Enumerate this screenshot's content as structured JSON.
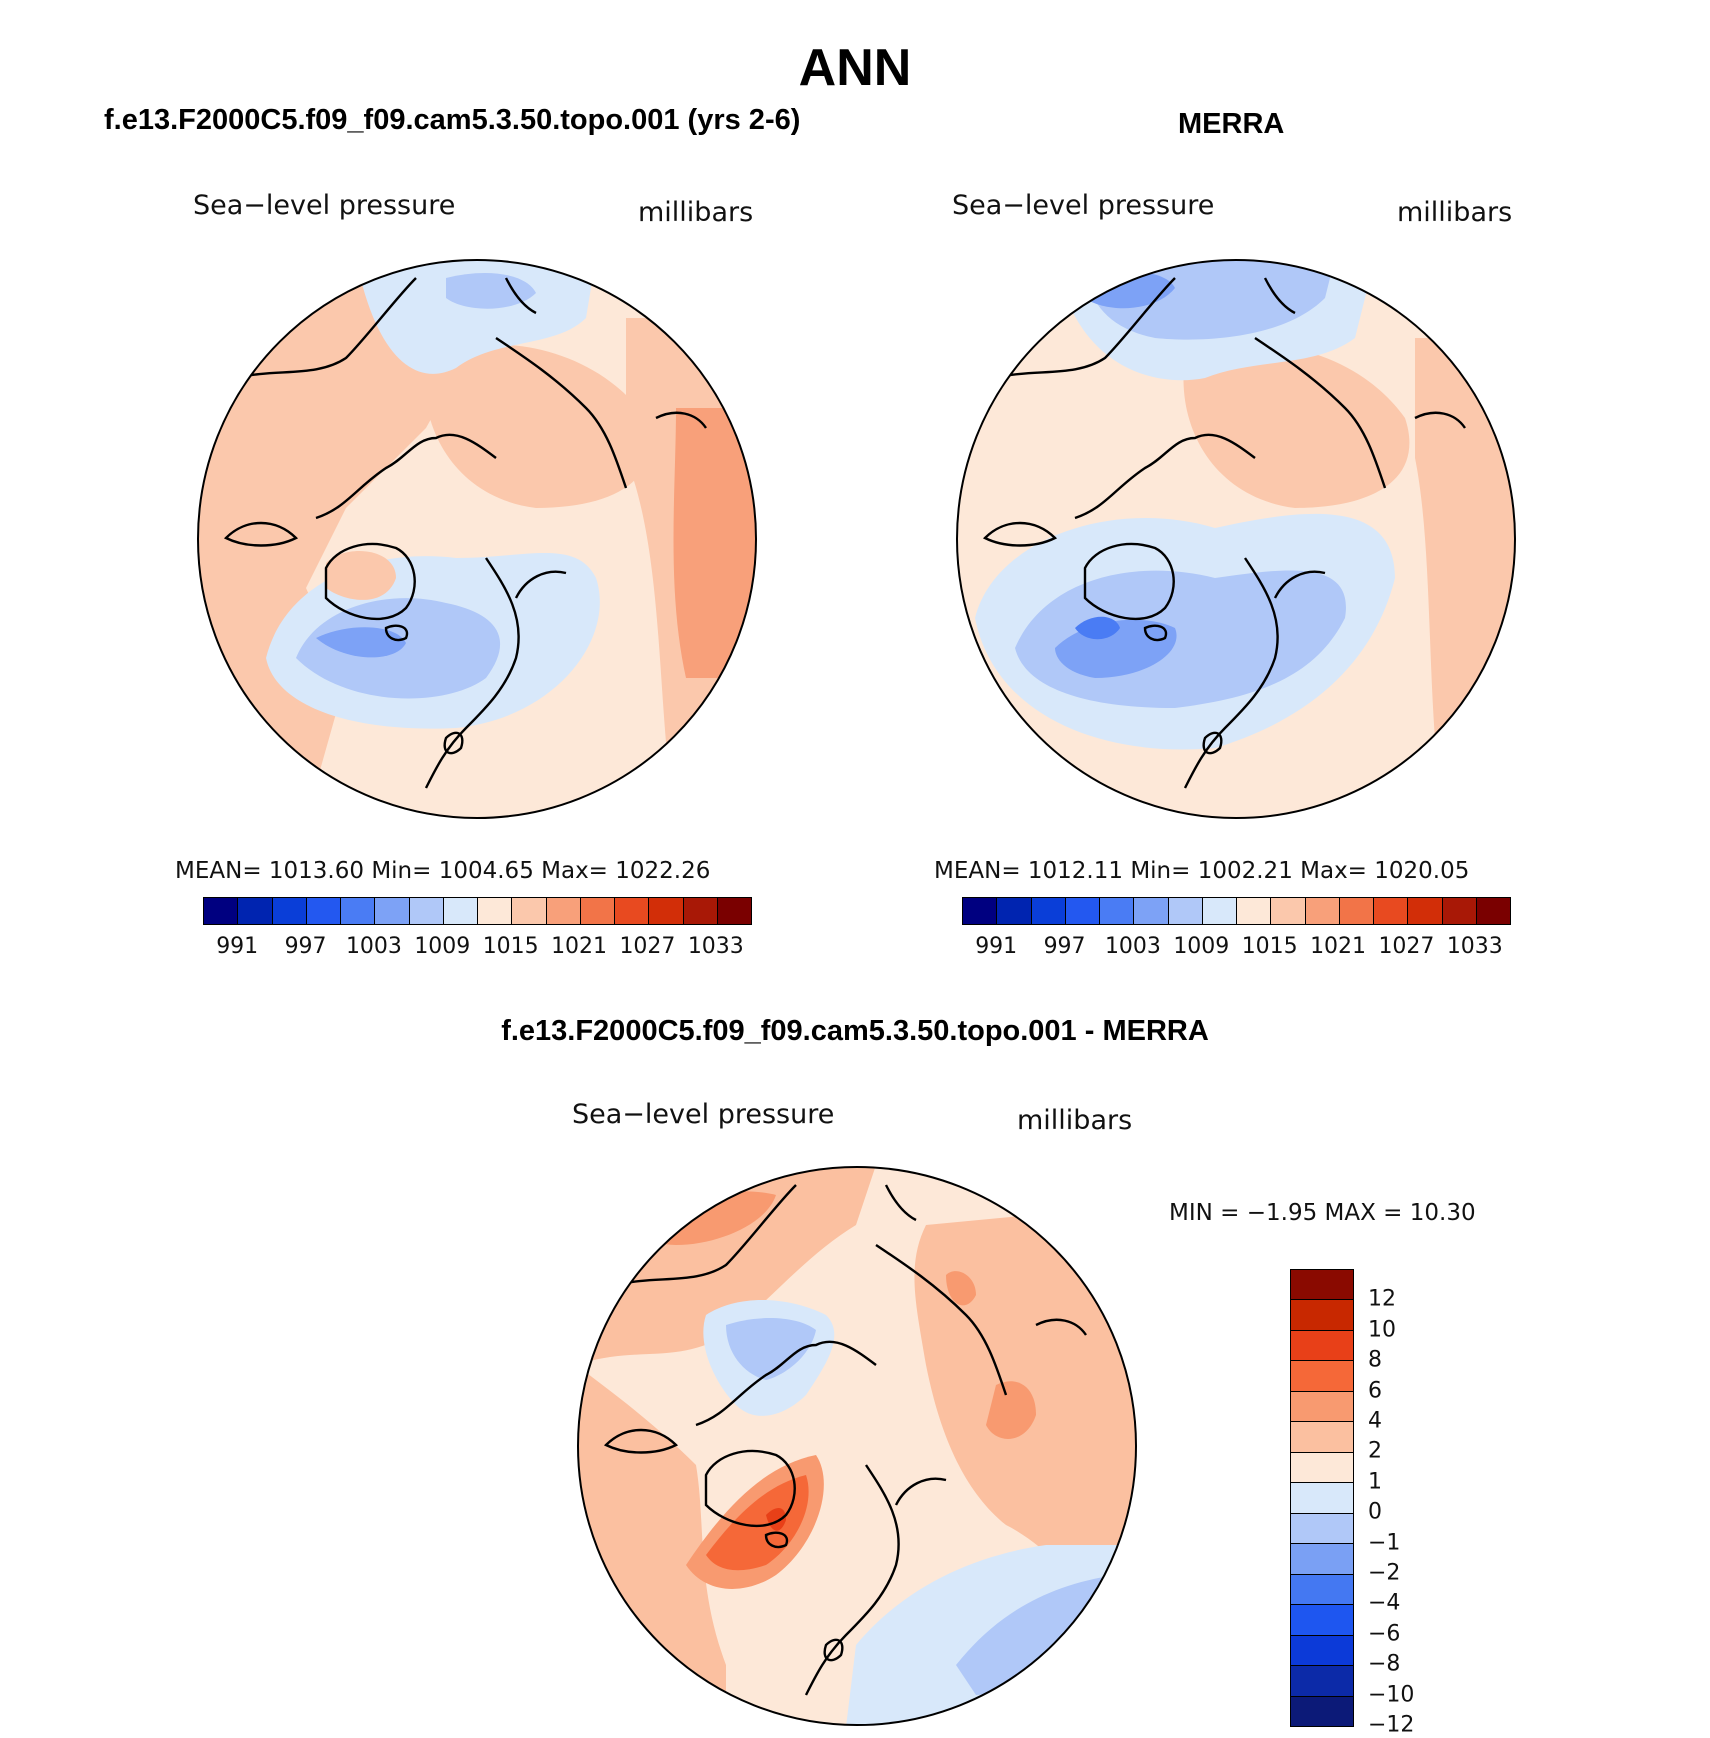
{
  "main_title": "ANN",
  "colors": {
    "abs_scale": [
      "#000080",
      "#0024b0",
      "#0a3ed8",
      "#2358f0",
      "#4a7cf4",
      "#7da2f6",
      "#b0c8f8",
      "#d8e8fa",
      "#fde8d8",
      "#fbc8ac",
      "#f8a07a",
      "#f27448",
      "#e84a20",
      "#d22e08",
      "#a81806",
      "#7a0000"
    ],
    "diff_scale": [
      "#0c1a78",
      "#0c2aa8",
      "#0c3ad8",
      "#1e56f0",
      "#4478f2",
      "#7aa0f4",
      "#b0c8f8",
      "#d8e8fa",
      "#fde8d8",
      "#fbc0a0",
      "#f89a70",
      "#f56838",
      "#e84018",
      "#c82800",
      "#8a0a00"
    ]
  },
  "panels": {
    "model": {
      "title": "f.e13.F2000C5.f09_f09.cam5.3.50.topo.001 (yrs 2-6)",
      "variable": "Sea−level pressure",
      "units": "millibars",
      "stats": "MEAN=  1013.60    Min=  1004.65    Max=  1022.26",
      "mean": 1013.6,
      "min": 1004.65,
      "max": 1022.26,
      "ticks": [
        "991",
        "997",
        "1003",
        "1009",
        "1015",
        "1021",
        "1027",
        "1033"
      ]
    },
    "obs": {
      "title": "MERRA",
      "variable": "Sea−level pressure",
      "units": "millibars",
      "stats": "MEAN=  1012.11    Min=  1002.21    Max=  1020.05",
      "mean": 1012.11,
      "min": 1002.21,
      "max": 1020.05,
      "ticks": [
        "991",
        "997",
        "1003",
        "1009",
        "1015",
        "1021",
        "1027",
        "1033"
      ]
    },
    "diff": {
      "title": "f.e13.F2000C5.f09_f09.cam5.3.50.topo.001 - MERRA",
      "variable": "Sea−level pressure",
      "units": "millibars",
      "stats": "MIN =   −1.95  MAX =    10.30",
      "min": -1.95,
      "max": 10.3,
      "ticks": [
        "12",
        "10",
        "8",
        "6",
        "4",
        "2",
        "1",
        "0",
        "−1",
        "−2",
        "−4",
        "−6",
        "−8",
        "−10",
        "−12"
      ]
    }
  }
}
